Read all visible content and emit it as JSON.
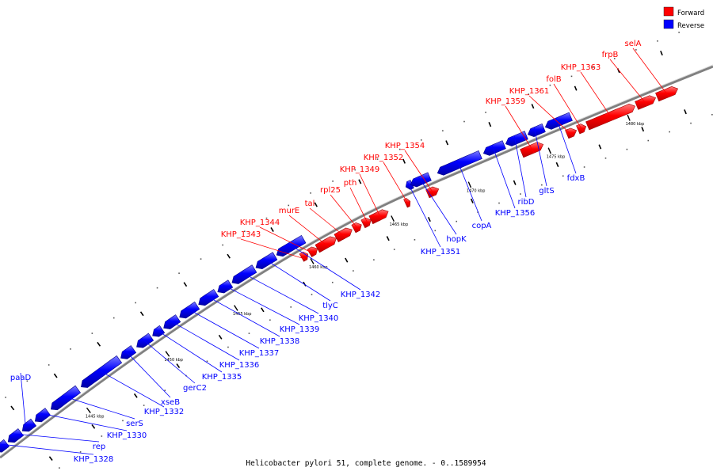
{
  "caption": "Helicobacter pylori 51, complete genome. - 0..1589954",
  "legend": [
    {
      "label": "Forward",
      "color": "#ff0000"
    },
    {
      "label": "Reverse",
      "color": "#0000ff"
    }
  ],
  "colors": {
    "forward": "#ff0000",
    "reverse": "#0000ff",
    "backbone": "#808080"
  },
  "ticks": [
    "1445 kbp",
    "1450 kbp",
    "1455 kbp",
    "1460 kbp",
    "1465 kbp",
    "1470 kbp",
    "1475 kbp",
    "1480 kbp"
  ],
  "genes": [
    {
      "name": "KHP_1328",
      "strand": "reverse"
    },
    {
      "name": "rep",
      "strand": "reverse"
    },
    {
      "name": "paaD",
      "strand": "reverse"
    },
    {
      "name": "KHP_1330",
      "strand": "reverse"
    },
    {
      "name": "serS",
      "strand": "reverse"
    },
    {
      "name": "KHP_1332",
      "strand": "reverse"
    },
    {
      "name": "xseB",
      "strand": "reverse"
    },
    {
      "name": "gerC2",
      "strand": "reverse"
    },
    {
      "name": "KHP_1335",
      "strand": "reverse"
    },
    {
      "name": "KHP_1336",
      "strand": "reverse"
    },
    {
      "name": "KHP_1337",
      "strand": "reverse"
    },
    {
      "name": "KHP_1338",
      "strand": "reverse"
    },
    {
      "name": "KHP_1339",
      "strand": "reverse"
    },
    {
      "name": "KHP_1340",
      "strand": "reverse"
    },
    {
      "name": "tlyC",
      "strand": "reverse"
    },
    {
      "name": "KHP_1342",
      "strand": "reverse"
    },
    {
      "name": "KHP_1343",
      "strand": "forward"
    },
    {
      "name": "KHP_1344",
      "strand": "forward"
    },
    {
      "name": "murE",
      "strand": "forward"
    },
    {
      "name": "tal",
      "strand": "forward"
    },
    {
      "name": "rpl25",
      "strand": "forward"
    },
    {
      "name": "pth",
      "strand": "forward"
    },
    {
      "name": "KHP_1349",
      "strand": "forward"
    },
    {
      "name": "KHP_1351",
      "strand": "reverse"
    },
    {
      "name": "KHP_1352",
      "strand": "forward"
    },
    {
      "name": "KHP_1354",
      "strand": "forward"
    },
    {
      "name": "hopK",
      "strand": "reverse"
    },
    {
      "name": "copA",
      "strand": "reverse"
    },
    {
      "name": "KHP_1356",
      "strand": "reverse"
    },
    {
      "name": "ribD",
      "strand": "reverse"
    },
    {
      "name": "gltS",
      "strand": "reverse"
    },
    {
      "name": "fdxB",
      "strand": "reverse"
    },
    {
      "name": "KHP_1359",
      "strand": "forward"
    },
    {
      "name": "KHP_1361",
      "strand": "forward"
    },
    {
      "name": "folB",
      "strand": "forward"
    },
    {
      "name": "KHP_1363",
      "strand": "forward"
    },
    {
      "name": "frpB",
      "strand": "forward"
    },
    {
      "name": "selA",
      "strand": "forward"
    }
  ]
}
